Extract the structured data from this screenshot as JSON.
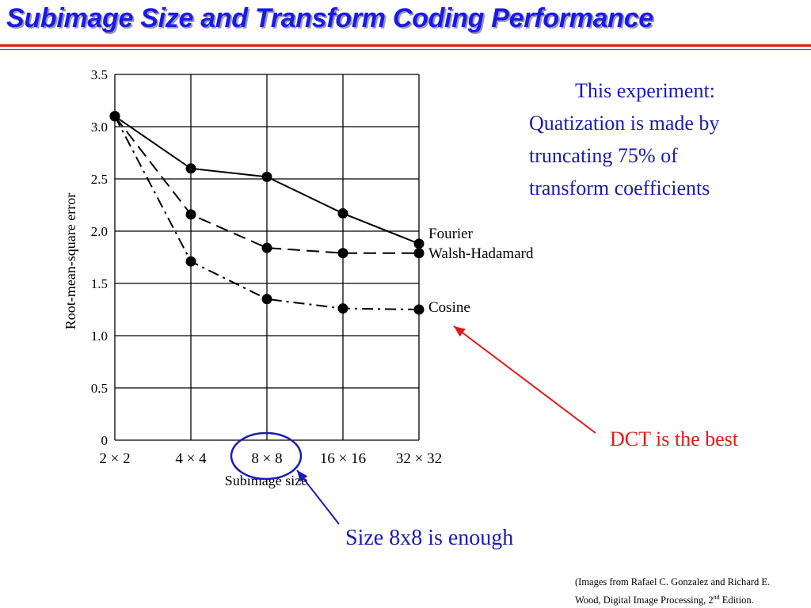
{
  "slide": {
    "title": "Subimage Size and Transform Coding Performance",
    "note_lines": [
      "This experiment:",
      "Quatization is made by",
      "truncating 75% of",
      "transform coefficients"
    ],
    "dct_callout": "DCT is the best",
    "size_callout": "Size 8x8 is enough",
    "credit_line1": "(Images from Rafael C. Gonzalez and Richard E.",
    "credit_line2_pre": "Wood, Digital Image Processing, 2",
    "credit_sup": "nd",
    "credit_line2_post": " Edition."
  },
  "colors": {
    "title": "#1a1ae6",
    "rule": "#e31818",
    "note": "#1a1ab8",
    "dct_arrow": "#e31818",
    "size_arrow": "#1a1ab8",
    "highlight_ellipse": "#1a1ab8"
  },
  "chart_data": {
    "type": "line",
    "xlabel": "Subimage size",
    "ylabel": "Root-mean-square error",
    "categories": [
      "2 × 2",
      "4 × 4",
      "8 × 8",
      "16 × 16",
      "32 × 32"
    ],
    "ylim": [
      0,
      3.5
    ],
    "yticks": [
      "0",
      "0.5",
      "1.0",
      "1.5",
      "2.0",
      "2.5",
      "3.0",
      "3.5"
    ],
    "grid": true,
    "legend": "labels at right end of each line",
    "highlighted_category": "8 × 8",
    "series": [
      {
        "name": "Fourier",
        "values": [
          3.1,
          2.6,
          2.52,
          2.17,
          1.88
        ],
        "dash": "solid"
      },
      {
        "name": "Walsh-Hadamard",
        "values": [
          3.1,
          2.16,
          1.84,
          1.79,
          1.79
        ],
        "dash": "dashed"
      },
      {
        "name": "Cosine",
        "values": [
          3.1,
          1.71,
          1.35,
          1.26,
          1.25
        ],
        "dash": "dashdot"
      }
    ]
  }
}
